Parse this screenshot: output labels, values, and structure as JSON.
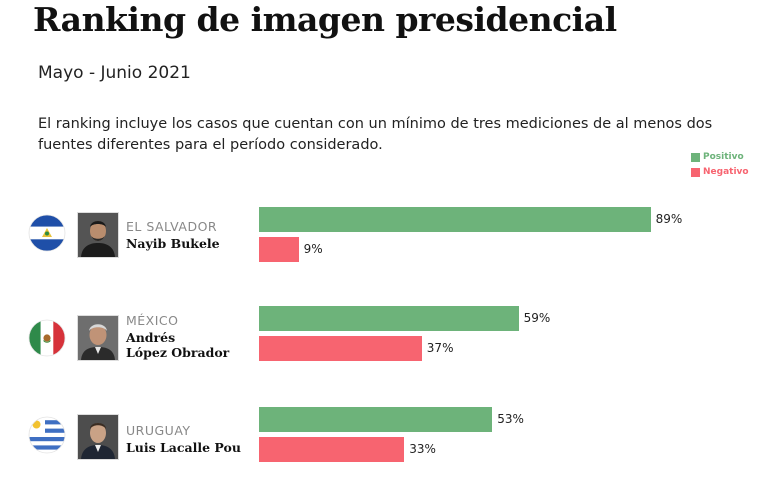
{
  "title": "Ranking de imagen presidencial",
  "subtitle": "Mayo - Junio 2021",
  "description": "El ranking incluye los casos que cuentan con un mínimo de tres mediciones de al menos dos fuentes diferentes para el período considerado.",
  "colors": {
    "positive": "#6db37a",
    "negative": "#f76470"
  },
  "chart_data": {
    "type": "bar",
    "orientation": "horizontal",
    "title": "Ranking de imagen presidencial",
    "subtitle": "Mayo - Junio 2021",
    "legend": {
      "placement": "top-right",
      "entries": [
        {
          "label": "Positivo",
          "color": "#6db37a"
        },
        {
          "label": "Negativo",
          "color": "#f76470"
        }
      ]
    },
    "categories": [
      {
        "country": "EL SALVADOR",
        "leader": [
          "Nayib Bukele"
        ],
        "flag_icon": "el-salvador-flag-icon"
      },
      {
        "country": "MÉXICO",
        "leader": [
          "Andrés",
          "López Obrador"
        ],
        "flag_icon": "mexico-flag-icon"
      },
      {
        "country": "URUGUAY",
        "leader": [
          "Luis Lacalle Pou"
        ],
        "flag_icon": "uruguay-flag-icon"
      }
    ],
    "series": [
      {
        "name": "Positivo",
        "values": [
          89,
          59,
          53
        ]
      },
      {
        "name": "Negativo",
        "values": [
          9,
          37,
          33
        ]
      }
    ],
    "value_suffix": "%",
    "xlim": [
      0,
      100
    ],
    "grid": false
  }
}
